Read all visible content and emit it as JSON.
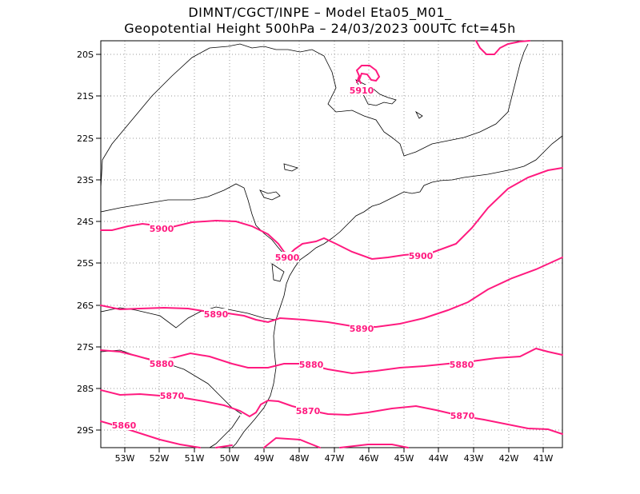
{
  "header": {
    "line1": "DIMNT/CGCT/INPE  –   Model Eta05_M01_",
    "line2": "Geopotential Height 500hPa  –   24/03/2023 00UTC fct=45h"
  },
  "colors": {
    "contour": "#ff1a7f",
    "grid": "#9a9a9a",
    "coast": "#000000"
  },
  "axes": {
    "lat_labels": [
      "20S",
      "21S",
      "22S",
      "23S",
      "24S",
      "25S",
      "26S",
      "27S",
      "28S",
      "29S"
    ],
    "lon_labels": [
      "53W",
      "52W",
      "51W",
      "50W",
      "49W",
      "48W",
      "47W",
      "46W",
      "45W",
      "44W",
      "43W",
      "42W",
      "41W"
    ]
  },
  "contours": [
    {
      "level": "5910"
    },
    {
      "level": "5900"
    },
    {
      "level": "5890"
    },
    {
      "level": "5880"
    },
    {
      "level": "5870"
    },
    {
      "level": "5860"
    }
  ],
  "contour_labels": {
    "l5910": "5910",
    "l5900a": "5900",
    "l5900b": "5900",
    "l5900c": "5900",
    "l5890a": "5890",
    "l5890b": "5890",
    "l5880a": "5880",
    "l5880b": "5880",
    "l5880c": "5880",
    "l5870a": "5870",
    "l5870b": "5870",
    "l5870c": "5870",
    "l5860a": "5860"
  }
}
